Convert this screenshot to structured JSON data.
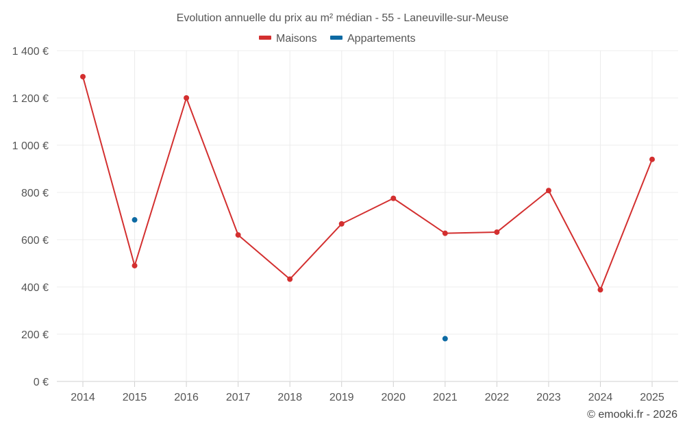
{
  "chart_data": {
    "type": "line",
    "title": "Evolution annuelle du prix au m² médian - 55 - Laneuville-sur-Meuse",
    "categories": [
      "2014",
      "2015",
      "2016",
      "2017",
      "2018",
      "2019",
      "2020",
      "2021",
      "2022",
      "2023",
      "2024",
      "2025"
    ],
    "y_ticks": [
      {
        "value": 0,
        "label": "0 €"
      },
      {
        "value": 200,
        "label": "200 €"
      },
      {
        "value": 400,
        "label": "400 €"
      },
      {
        "value": 600,
        "label": "600 €"
      },
      {
        "value": 800,
        "label": "800 €"
      },
      {
        "value": 1000,
        "label": "1 000 €"
      },
      {
        "value": 1200,
        "label": "1 200 €"
      },
      {
        "value": 1400,
        "label": "1 400 €"
      }
    ],
    "ylim": [
      0,
      1400
    ],
    "grid": true,
    "legend_position": "top-center",
    "series": [
      {
        "name": "Maisons",
        "color": "#d32f2f",
        "line": true,
        "values": [
          1290,
          490,
          1200,
          620,
          433,
          667,
          775,
          627,
          632,
          808,
          388,
          940
        ]
      },
      {
        "name": "Appartements",
        "color": "#0d6aa3",
        "line": false,
        "values": [
          null,
          684,
          null,
          null,
          null,
          null,
          null,
          181,
          null,
          null,
          null,
          null
        ]
      }
    ],
    "credit": "© emooki.fr - 2026"
  }
}
